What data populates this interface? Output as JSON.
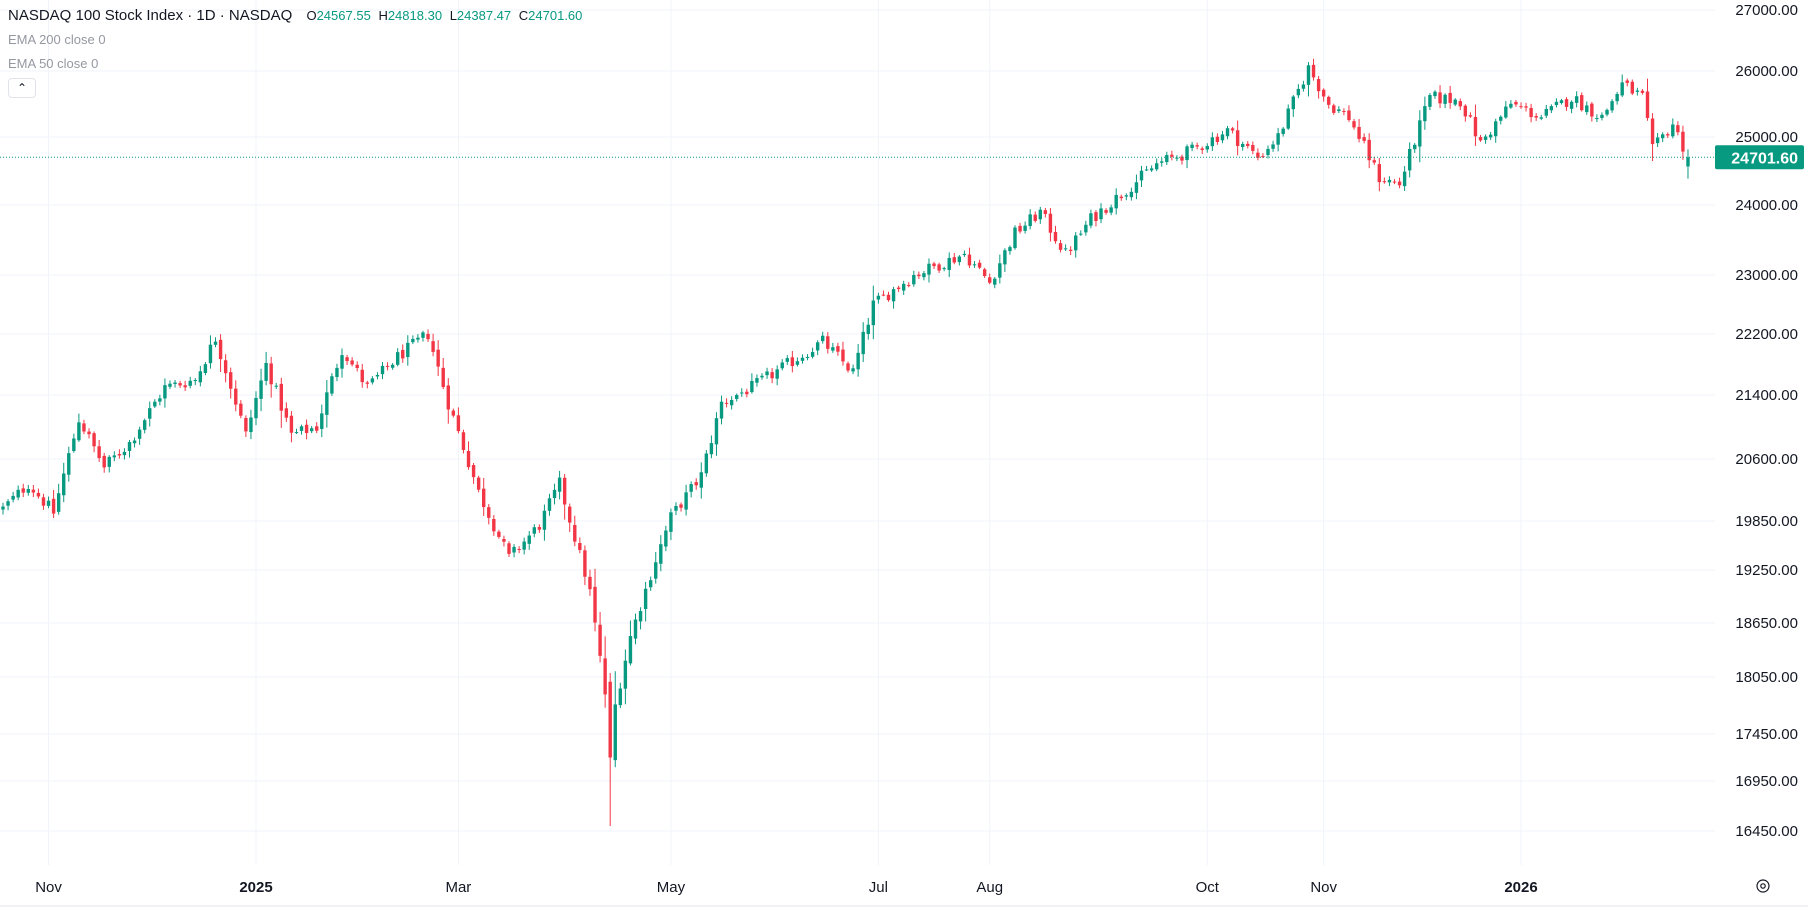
{
  "legend": {
    "symbol": "NASDAQ 100 Stock Index · 1D · NASDAQ",
    "o_label": "O",
    "o_value": "24567.55",
    "h_label": "H",
    "h_value": "24818.30",
    "l_label": "L",
    "l_value": "24387.47",
    "c_label": "C",
    "c_value": "24701.60"
  },
  "indicators": [
    "EMA 200 close 0",
    "EMA 50 close 0"
  ],
  "icons": {
    "collapse": "chevron-up-icon",
    "settings": "settings-icon"
  },
  "colors": {
    "up": "#089981",
    "down": "#f23645",
    "last_price_bg": "#089981",
    "grid": "#f0f3fa"
  },
  "chart_data": {
    "type": "candlestick",
    "last_price": 24701.6,
    "y_ticks": [
      27000,
      26000,
      25000,
      24000,
      23000,
      22200,
      21400,
      20600,
      19850,
      19250,
      18650,
      18050,
      17450,
      16950,
      16450
    ],
    "y_tick_labels": [
      "27000.00",
      "26000.00",
      "25000.00",
      "24000.00",
      "23000.00",
      "22200.00",
      "21400.00",
      "20600.00",
      "19850.00",
      "19250.00",
      "18650.00",
      "18050.00",
      "17450.00",
      "16950.00",
      "16450.00"
    ],
    "x_tick_labels": [
      "Nov",
      "2025",
      "Mar",
      "May",
      "Jul",
      "Aug",
      "Oct",
      "Nov",
      "2026"
    ],
    "x_tick_bold": [
      false,
      true,
      false,
      false,
      false,
      false,
      false,
      false,
      true
    ],
    "x_tick_index": [
      9,
      50,
      90,
      132,
      173,
      195,
      238,
      261,
      300
    ],
    "anchors": [
      [
        0,
        20000
      ],
      [
        5,
        20300
      ],
      [
        10,
        19950
      ],
      [
        15,
        21100
      ],
      [
        20,
        20500
      ],
      [
        25,
        20800
      ],
      [
        32,
        21500
      ],
      [
        38,
        21600
      ],
      [
        42,
        22150
      ],
      [
        48,
        20900
      ],
      [
        52,
        21800
      ],
      [
        57,
        20900
      ],
      [
        62,
        21000
      ],
      [
        67,
        22000
      ],
      [
        72,
        21500
      ],
      [
        78,
        21900
      ],
      [
        84,
        22200
      ],
      [
        88,
        21300
      ],
      [
        94,
        20200
      ],
      [
        100,
        19400
      ],
      [
        106,
        19800
      ],
      [
        110,
        20300
      ],
      [
        116,
        19000
      ],
      [
        120,
        17500
      ],
      [
        124,
        18500
      ],
      [
        128,
        19200
      ],
      [
        132,
        19900
      ],
      [
        138,
        20400
      ],
      [
        142,
        21300
      ],
      [
        148,
        21500
      ],
      [
        155,
        21800
      ],
      [
        162,
        22100
      ],
      [
        168,
        21700
      ],
      [
        172,
        22600
      ],
      [
        180,
        23000
      ],
      [
        190,
        23300
      ],
      [
        195,
        22900
      ],
      [
        200,
        23600
      ],
      [
        205,
        23900
      ],
      [
        210,
        23300
      ],
      [
        215,
        23800
      ],
      [
        220,
        24100
      ],
      [
        228,
        24600
      ],
      [
        235,
        24800
      ],
      [
        242,
        25100
      ],
      [
        248,
        24700
      ],
      [
        252,
        25000
      ],
      [
        258,
        26050
      ],
      [
        262,
        25500
      ],
      [
        266,
        25300
      ],
      [
        272,
        24400
      ],
      [
        276,
        24300
      ],
      [
        282,
        25600
      ],
      [
        288,
        25550
      ],
      [
        292,
        24900
      ],
      [
        298,
        25500
      ],
      [
        304,
        25300
      ],
      [
        310,
        25600
      ],
      [
        316,
        25300
      ],
      [
        320,
        25800
      ],
      [
        324,
        25600
      ],
      [
        326,
        24800
      ],
      [
        330,
        25200
      ],
      [
        333,
        24700
      ]
    ]
  }
}
